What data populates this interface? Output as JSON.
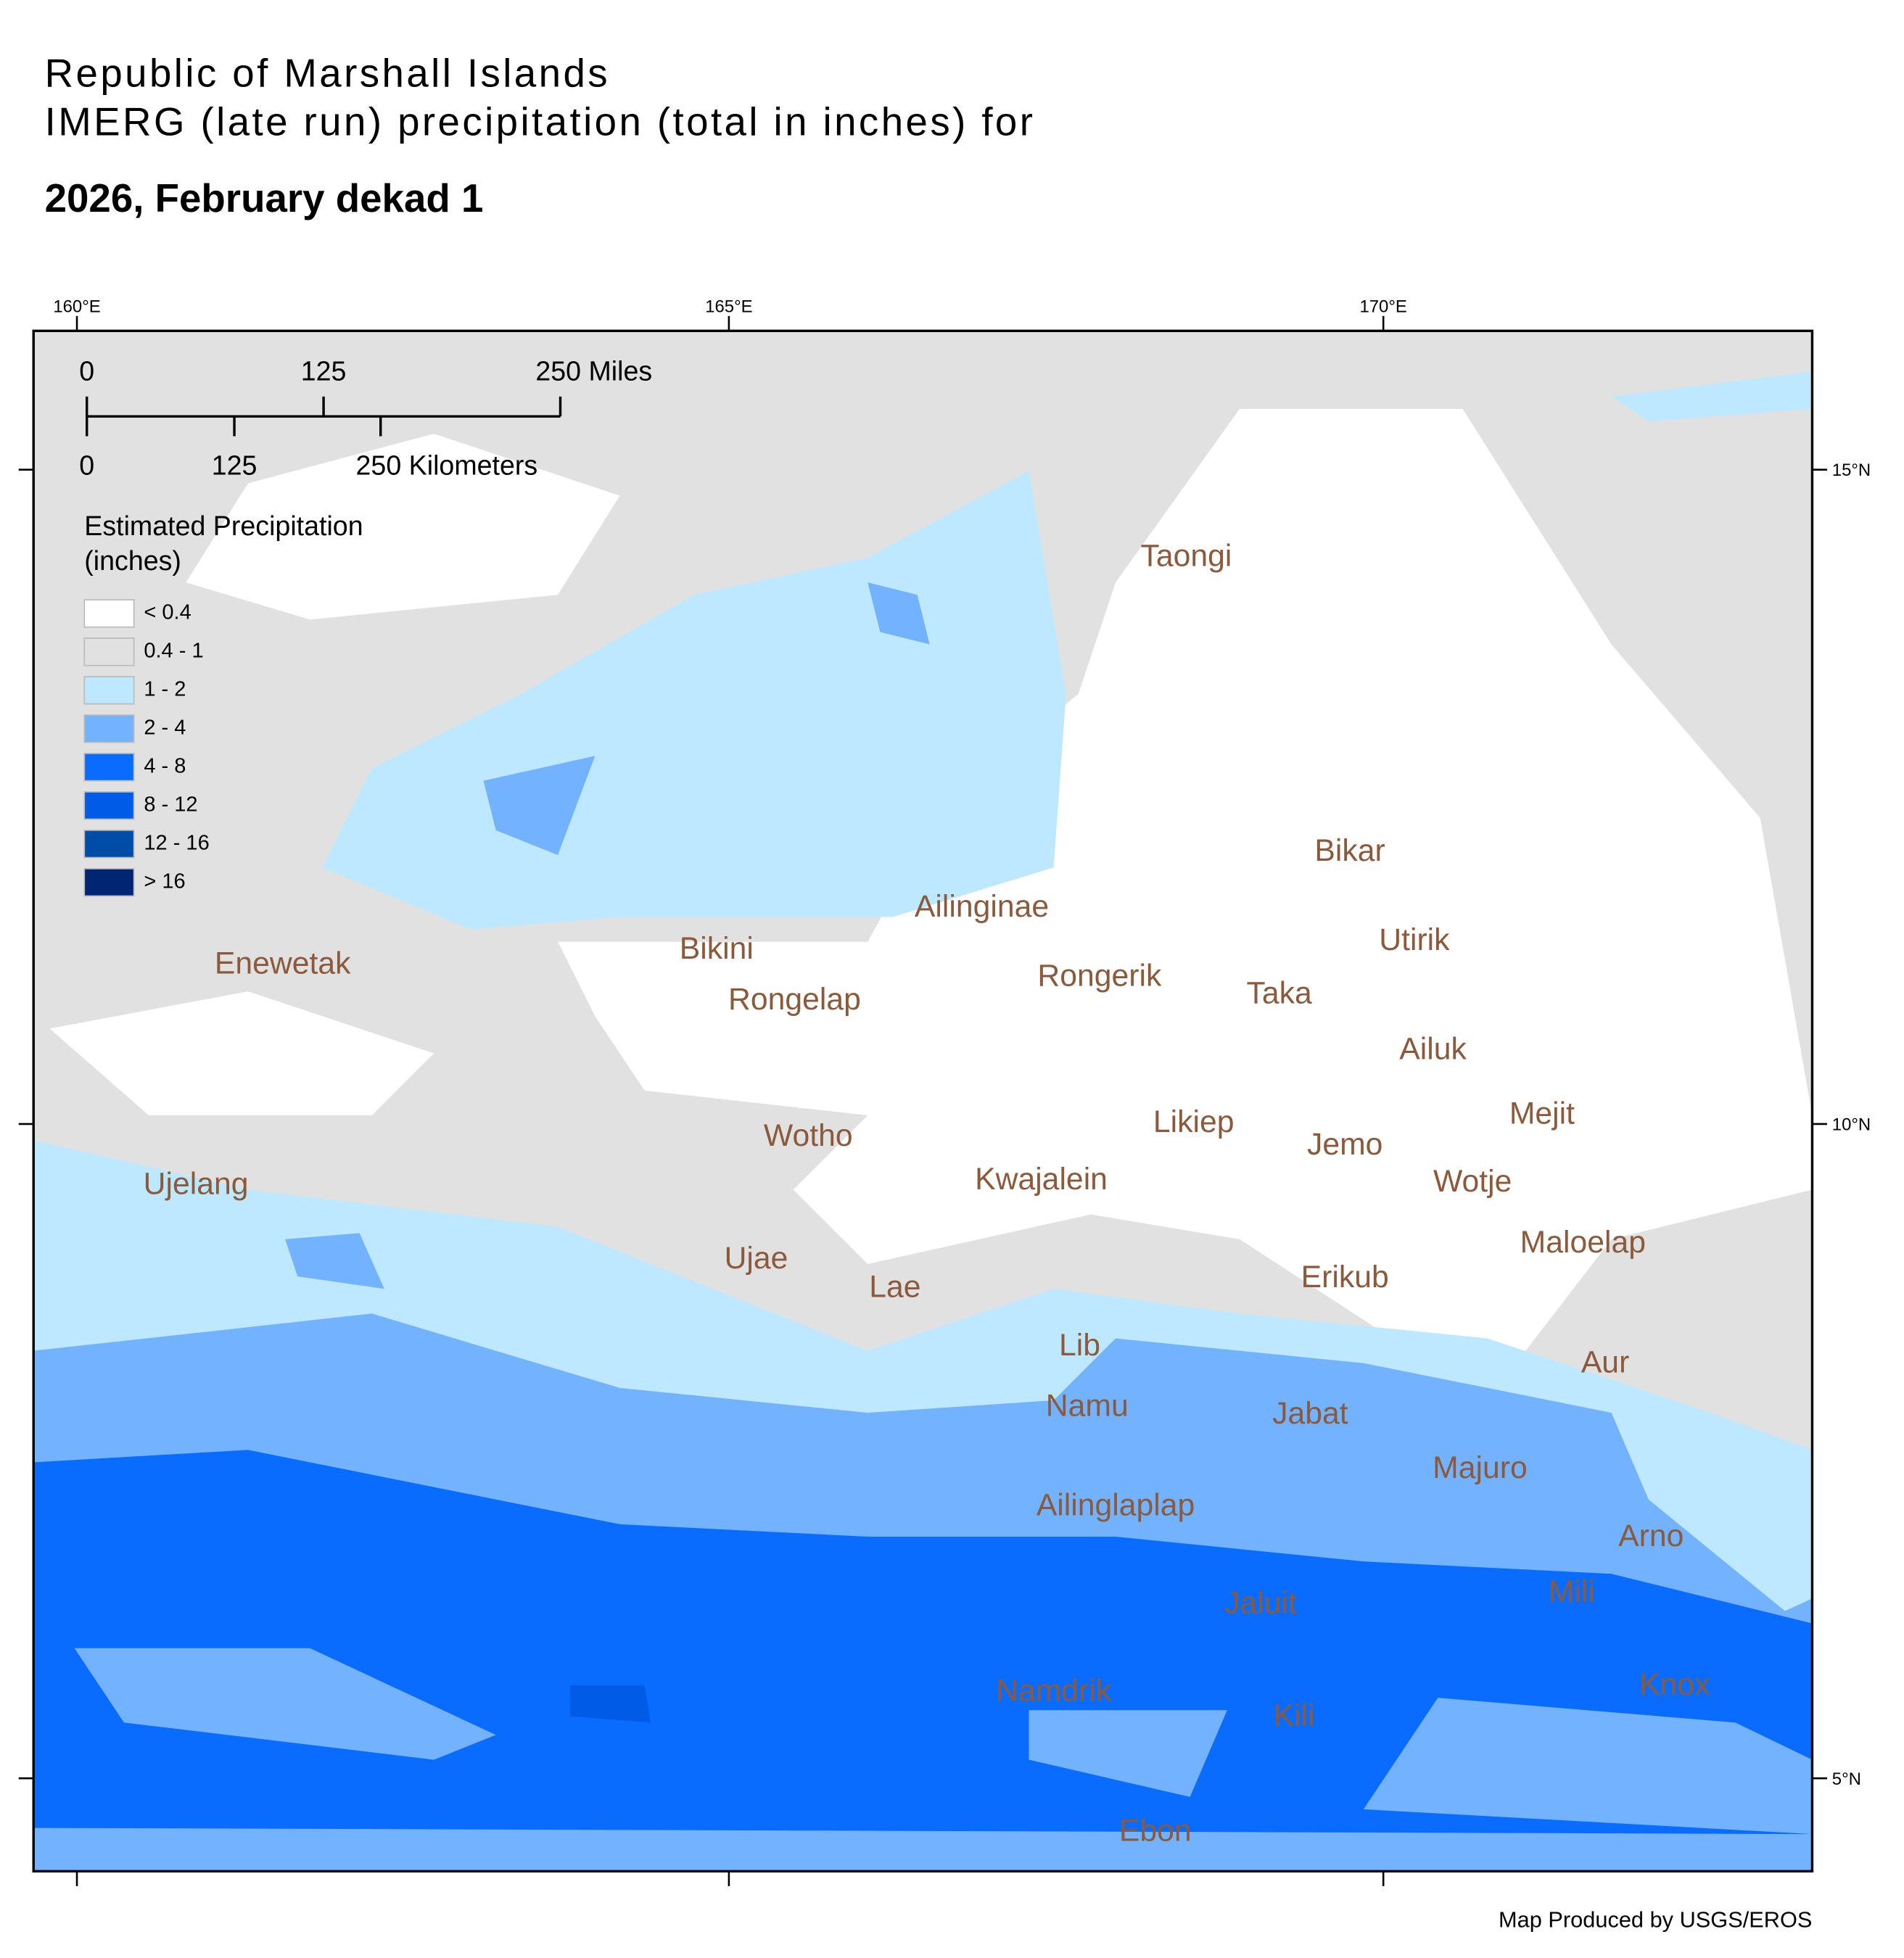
{
  "title": {
    "line1": "Republic of Marshall Islands",
    "line2": "IMERG (late run) precipitation (total in inches) for",
    "period": "2026, February dekad 1"
  },
  "graticule": {
    "longitudes": [
      "160°E",
      "165°E",
      "170°E"
    ],
    "latitudes": [
      "15°N",
      "10°N",
      "5°N"
    ]
  },
  "scale_bar": {
    "miles": [
      "0",
      "125",
      "250 Miles"
    ],
    "kilometers": [
      "0",
      "125",
      "250 Kilometers"
    ]
  },
  "legend": {
    "title_line1": "Estimated Precipitation",
    "title_line2": "(inches)",
    "classes": [
      {
        "label": "< 0.4",
        "color": "#ffffff"
      },
      {
        "label": "0.4 - 1",
        "color": "#e1e1e1"
      },
      {
        "label": "1 - 2",
        "color": "#bee8ff"
      },
      {
        "label": "2 - 4",
        "color": "#73b2ff"
      },
      {
        "label": "4 - 8",
        "color": "#0a6cff"
      },
      {
        "label": "8 - 12",
        "color": "#005ce6"
      },
      {
        "label": "12 - 16",
        "color": "#004da8"
      },
      {
        "label": "> 16",
        "color": "#002673"
      }
    ]
  },
  "places": [
    "Taongi",
    "Bikar",
    "Enewetak",
    "Bikini",
    "Ailinginae",
    "Utirik",
    "Rongerik",
    "Taka",
    "Rongelap",
    "Ailuk",
    "Mejit",
    "Likiep",
    "Jemo",
    "Wotho",
    "Kwajalein",
    "Ujelang",
    "Wotje",
    "Maloelap",
    "Ujae",
    "Erikub",
    "Lae",
    "Lib",
    "Aur",
    "Namu",
    "Jabat",
    "Majuro",
    "Ailinglaplap",
    "Arno",
    "Mili",
    "Jaluit",
    "Knox",
    "Namdrik",
    "Kili",
    "Ebon"
  ],
  "credit": "Map Produced by USGS/EROS"
}
